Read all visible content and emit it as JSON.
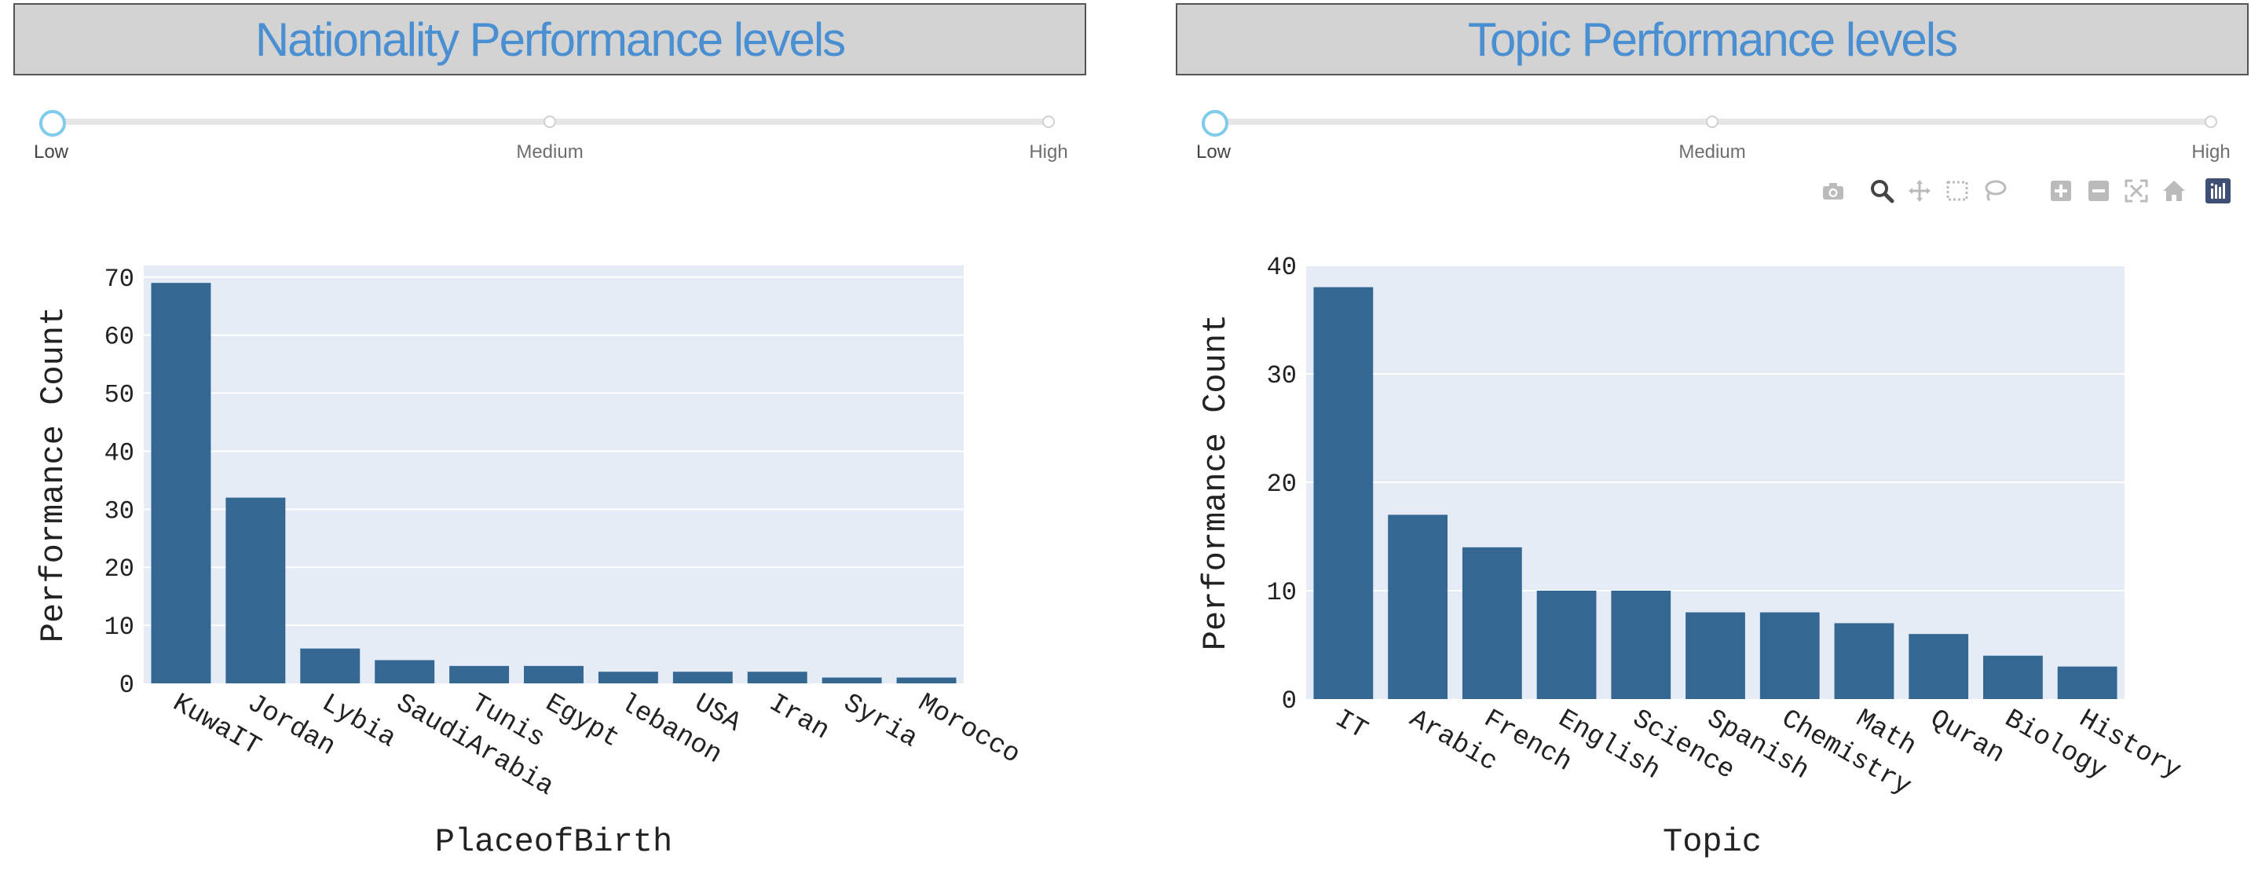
{
  "colors": {
    "bar": "#346792",
    "plot_bg": "#e5ecf6",
    "grid": "#ffffff",
    "title_text": "#4a8fd1",
    "title_bg": "#d3d3d3",
    "slider_handle": "#7fcbec",
    "modebar_icon": "#bbbbbb",
    "modebar_active": "#444444",
    "plotly_logo": "#3f4f75"
  },
  "panels": [
    {
      "title": "Nationality Performance levels",
      "slider": {
        "labels": [
          "Low",
          "Medium",
          "High"
        ],
        "selected": "Low"
      },
      "show_modebar": false
    },
    {
      "title": "Topic Performance levels",
      "slider": {
        "labels": [
          "Low",
          "Medium",
          "High"
        ],
        "selected": "Low"
      },
      "show_modebar": true
    }
  ],
  "modebar": {
    "icons": [
      "camera-icon",
      "zoom-icon",
      "pan-icon",
      "box-select-icon",
      "lasso-icon",
      "zoom-in-icon",
      "zoom-out-icon",
      "autoscale-icon",
      "reset-axes-icon",
      "plotly-logo-icon"
    ],
    "active": "zoom-icon"
  },
  "chart_data": [
    {
      "type": "bar",
      "categories": [
        "KuwaIT",
        "Jordan",
        "Lybia",
        "SaudiArabia",
        "Tunis",
        "Egypt",
        "lebanon",
        "USA",
        "Iran",
        "Syria",
        "Morocco"
      ],
      "values": [
        69,
        32,
        6,
        4,
        3,
        3,
        2,
        2,
        2,
        1,
        1
      ],
      "xlabel": "PlaceofBirth",
      "ylabel": "Performance Count",
      "ylim": [
        0,
        72
      ],
      "yticks": [
        0,
        10,
        20,
        30,
        40,
        50,
        60,
        70
      ],
      "grid": true
    },
    {
      "type": "bar",
      "categories": [
        "IT",
        "Arabic",
        "French",
        "English",
        "Science",
        "Spanish",
        "Chemistry",
        "Math",
        "Quran",
        "Biology",
        "History"
      ],
      "values": [
        38,
        17,
        14,
        10,
        10,
        8,
        8,
        7,
        6,
        4,
        3
      ],
      "xlabel": "Topic",
      "ylabel": "Performance Count",
      "ylim": [
        0,
        40
      ],
      "yticks": [
        0,
        10,
        20,
        30,
        40
      ],
      "grid": true
    }
  ]
}
